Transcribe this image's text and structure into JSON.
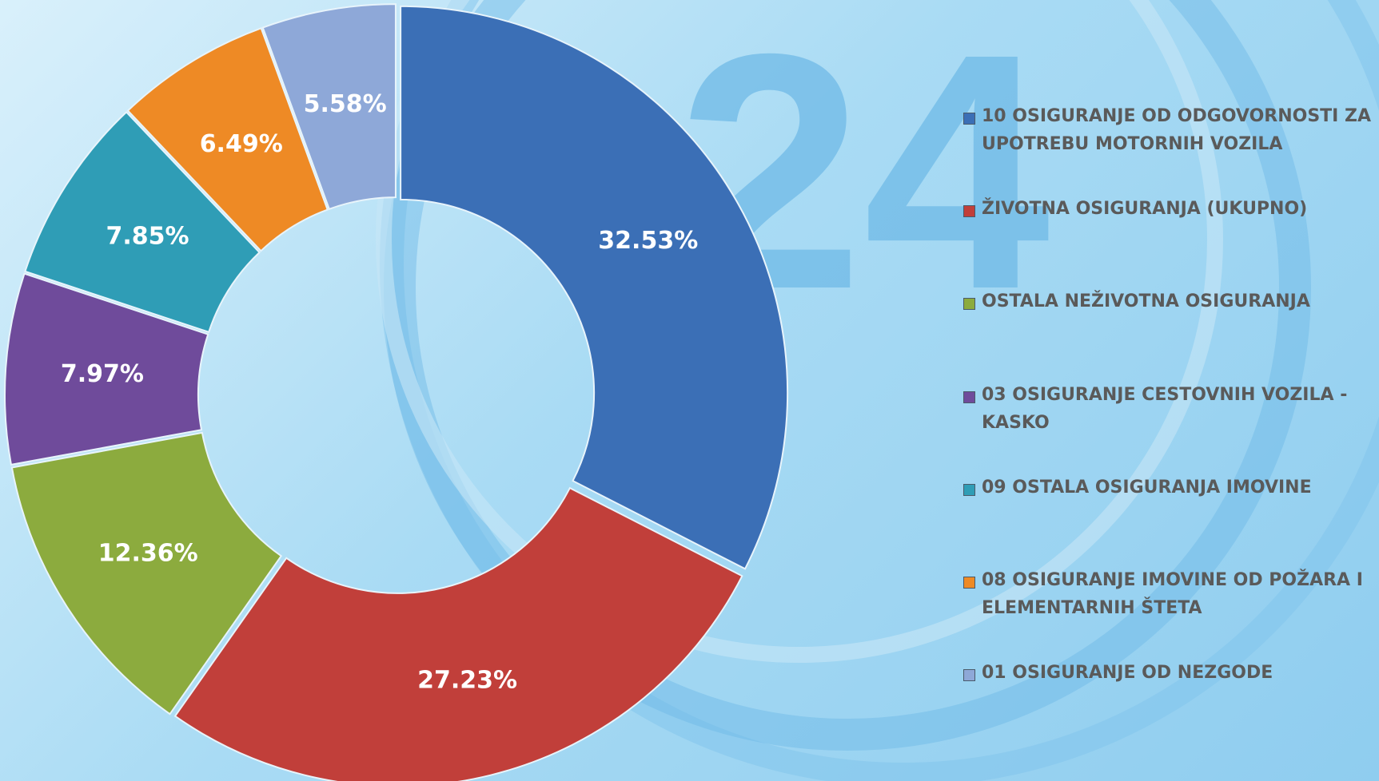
{
  "chart_data": {
    "type": "donut",
    "categories": [
      "10 OSIGURANJE OD ODGOVORNOSTI ZA UPOTREBU MOTORNIH VOZILA",
      "ŽIVOTNA OSIGURANJA (UKUPNO)",
      "OSTALA NEŽIVOTNA OSIGURANJA",
      "03 OSIGURANJE CESTOVNIH VOZILA - KASKO",
      "09 OSTALA OSIGURANJA IMOVINE",
      "08 OSIGURANJE IMOVINE OD POŽARA I ELEMENTARNIH ŠTETA",
      "01 OSIGURANJE OD NEZGODE"
    ],
    "values": [
      32.53,
      27.23,
      12.36,
      7.97,
      7.85,
      6.49,
      5.58
    ],
    "value_labels": [
      "32.53%",
      "27.23%",
      "12.36%",
      "7.97%",
      "7.85%",
      "6.49%",
      "5.58%"
    ],
    "colors": [
      "#3b6fb6",
      "#c13f3a",
      "#8cab3e",
      "#6f4b9b",
      "#2f9db6",
      "#ee8a25",
      "#8ea8d8"
    ],
    "legend": "right"
  }
}
